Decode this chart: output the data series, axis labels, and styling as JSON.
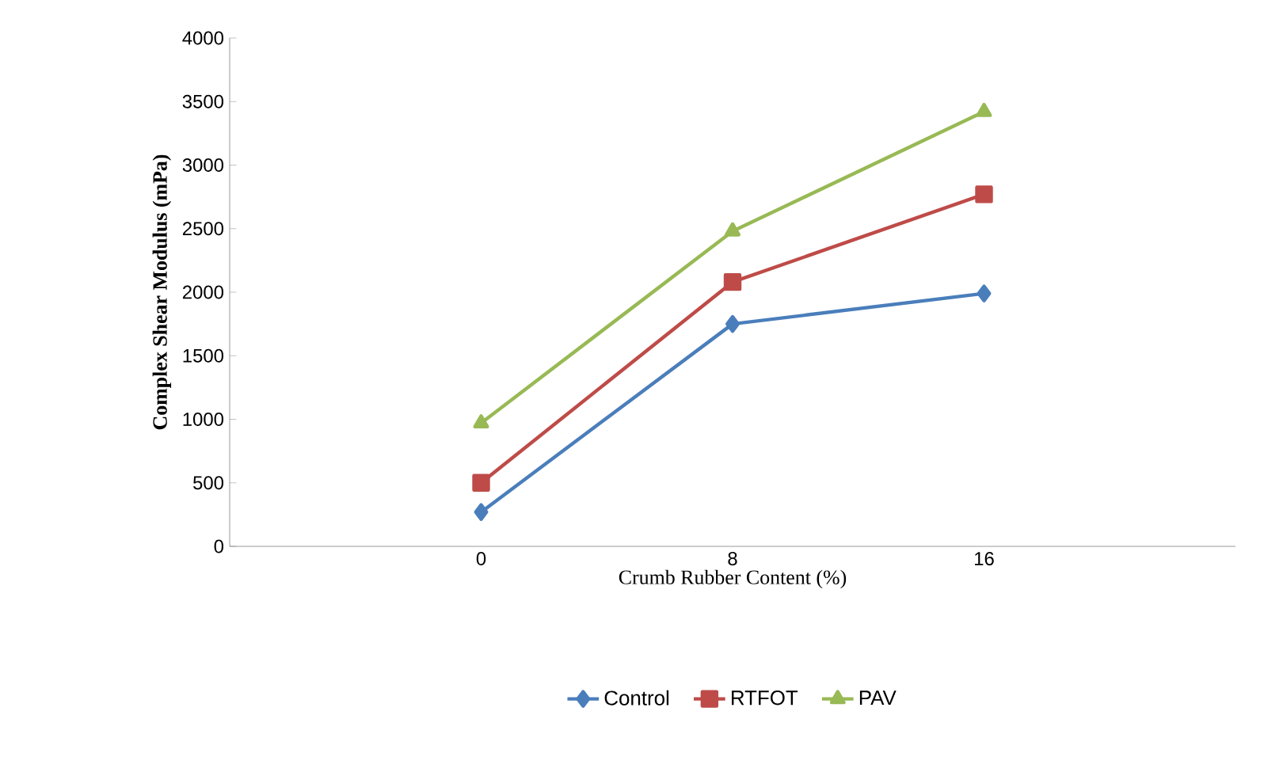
{
  "chart_data": {
    "type": "line",
    "xlabel": "Crumb Rubber Content (%)",
    "ylabel": "Complex Shear Modulus (mPa)",
    "categories": [
      "0",
      "8",
      "16"
    ],
    "series": [
      {
        "name": "Control",
        "color": "#4a7ebb",
        "marker": "diamond",
        "values": [
          270,
          1750,
          1990
        ]
      },
      {
        "name": "RTFOT",
        "color": "#be4b48",
        "marker": "square",
        "values": [
          500,
          2080,
          2770
        ]
      },
      {
        "name": "PAV",
        "color": "#98b954",
        "marker": "triangle",
        "values": [
          970,
          2480,
          3420
        ]
      }
    ],
    "ylim": [
      0,
      4000
    ],
    "yticks": [
      0,
      500,
      1000,
      1500,
      2000,
      2500,
      3000,
      3500,
      4000
    ],
    "grid": false,
    "legend": "bottom",
    "line_style": "solid"
  }
}
